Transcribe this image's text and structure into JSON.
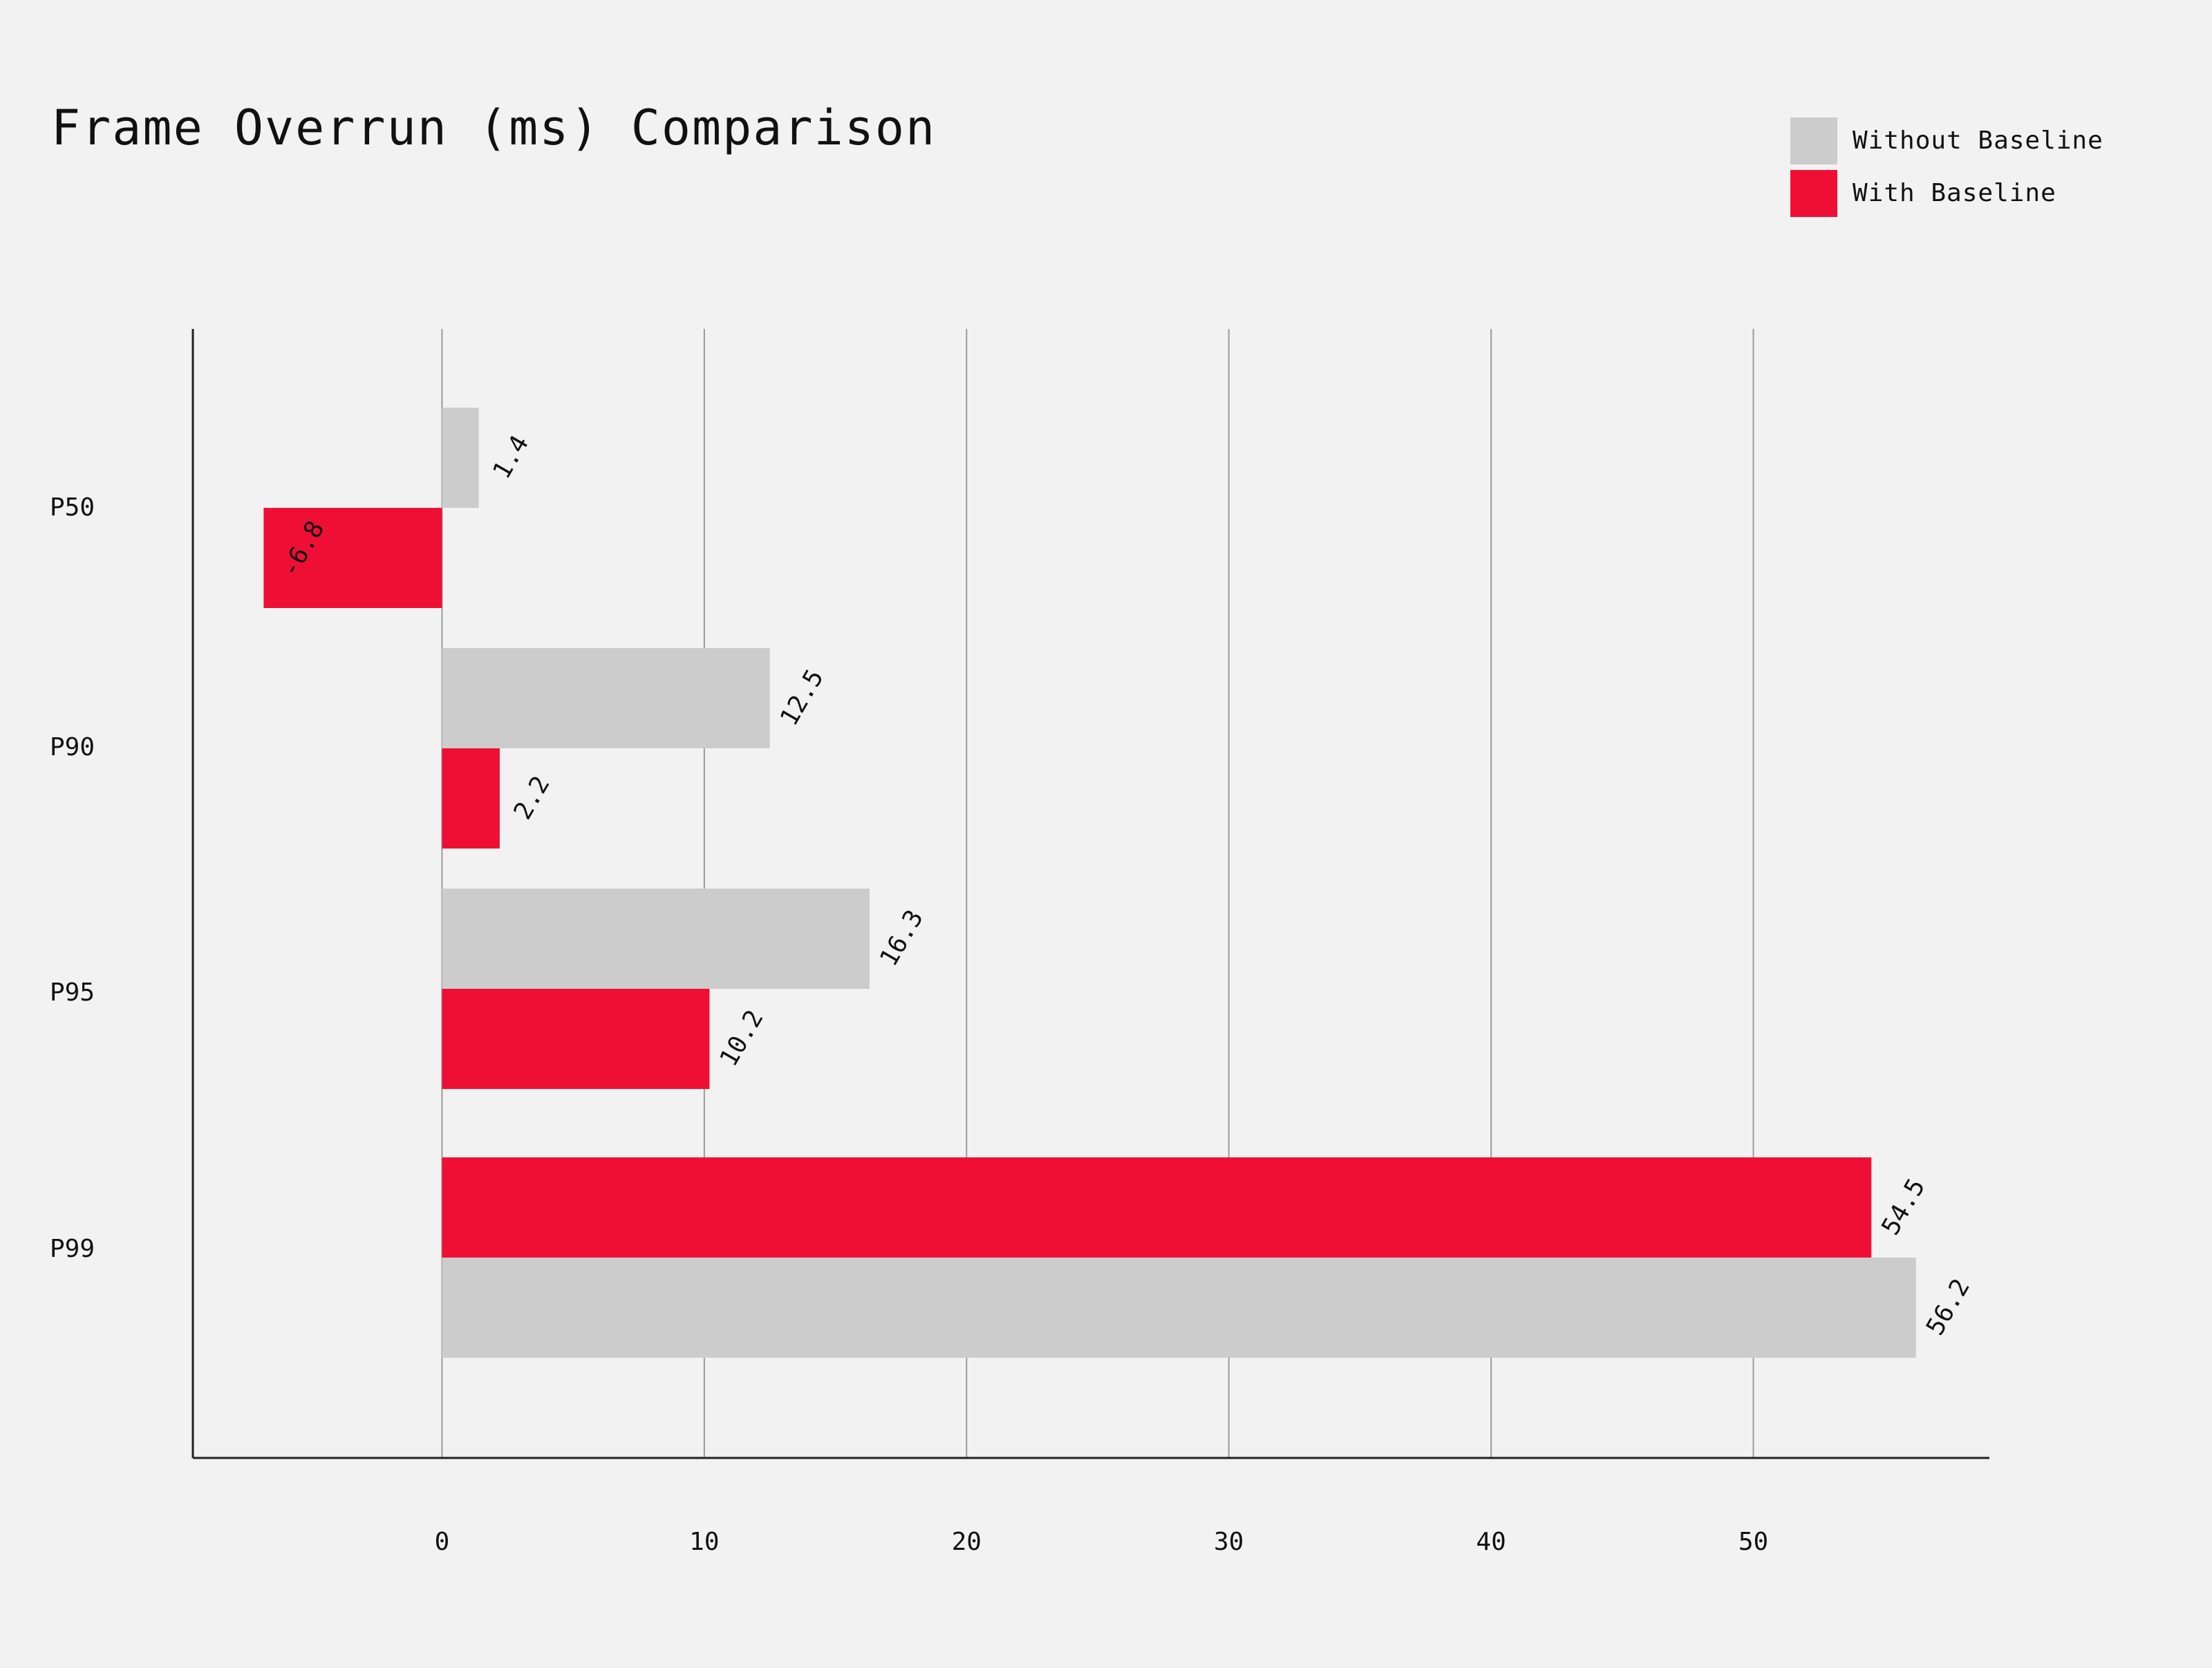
{
  "colors": {
    "background": "#f2f2f2",
    "without_baseline": "#cccccc",
    "with_baseline": "#ef0f35",
    "grid": "#9a9a9a",
    "axis": "#222222",
    "text": "#111111"
  },
  "chart_data": {
    "type": "bar",
    "orientation": "horizontal",
    "title": "Frame Overrun (ms) Comparison",
    "xlabel": "",
    "ylabel": "",
    "categories": [
      "P50",
      "P90",
      "P95",
      "P99"
    ],
    "series": [
      {
        "name": "Without Baseline",
        "values": [
          1.4,
          12.5,
          16.3,
          56.2
        ]
      },
      {
        "name": "With Baseline",
        "values": [
          -6.8,
          2.2,
          10.2,
          54.5
        ]
      }
    ],
    "xlim": [
      -9.5,
      59
    ],
    "xticks": [
      "0",
      "10",
      "20",
      "30",
      "40",
      "50"
    ],
    "grid": "vertical",
    "legend_position": "top-right",
    "data_labels": true
  }
}
